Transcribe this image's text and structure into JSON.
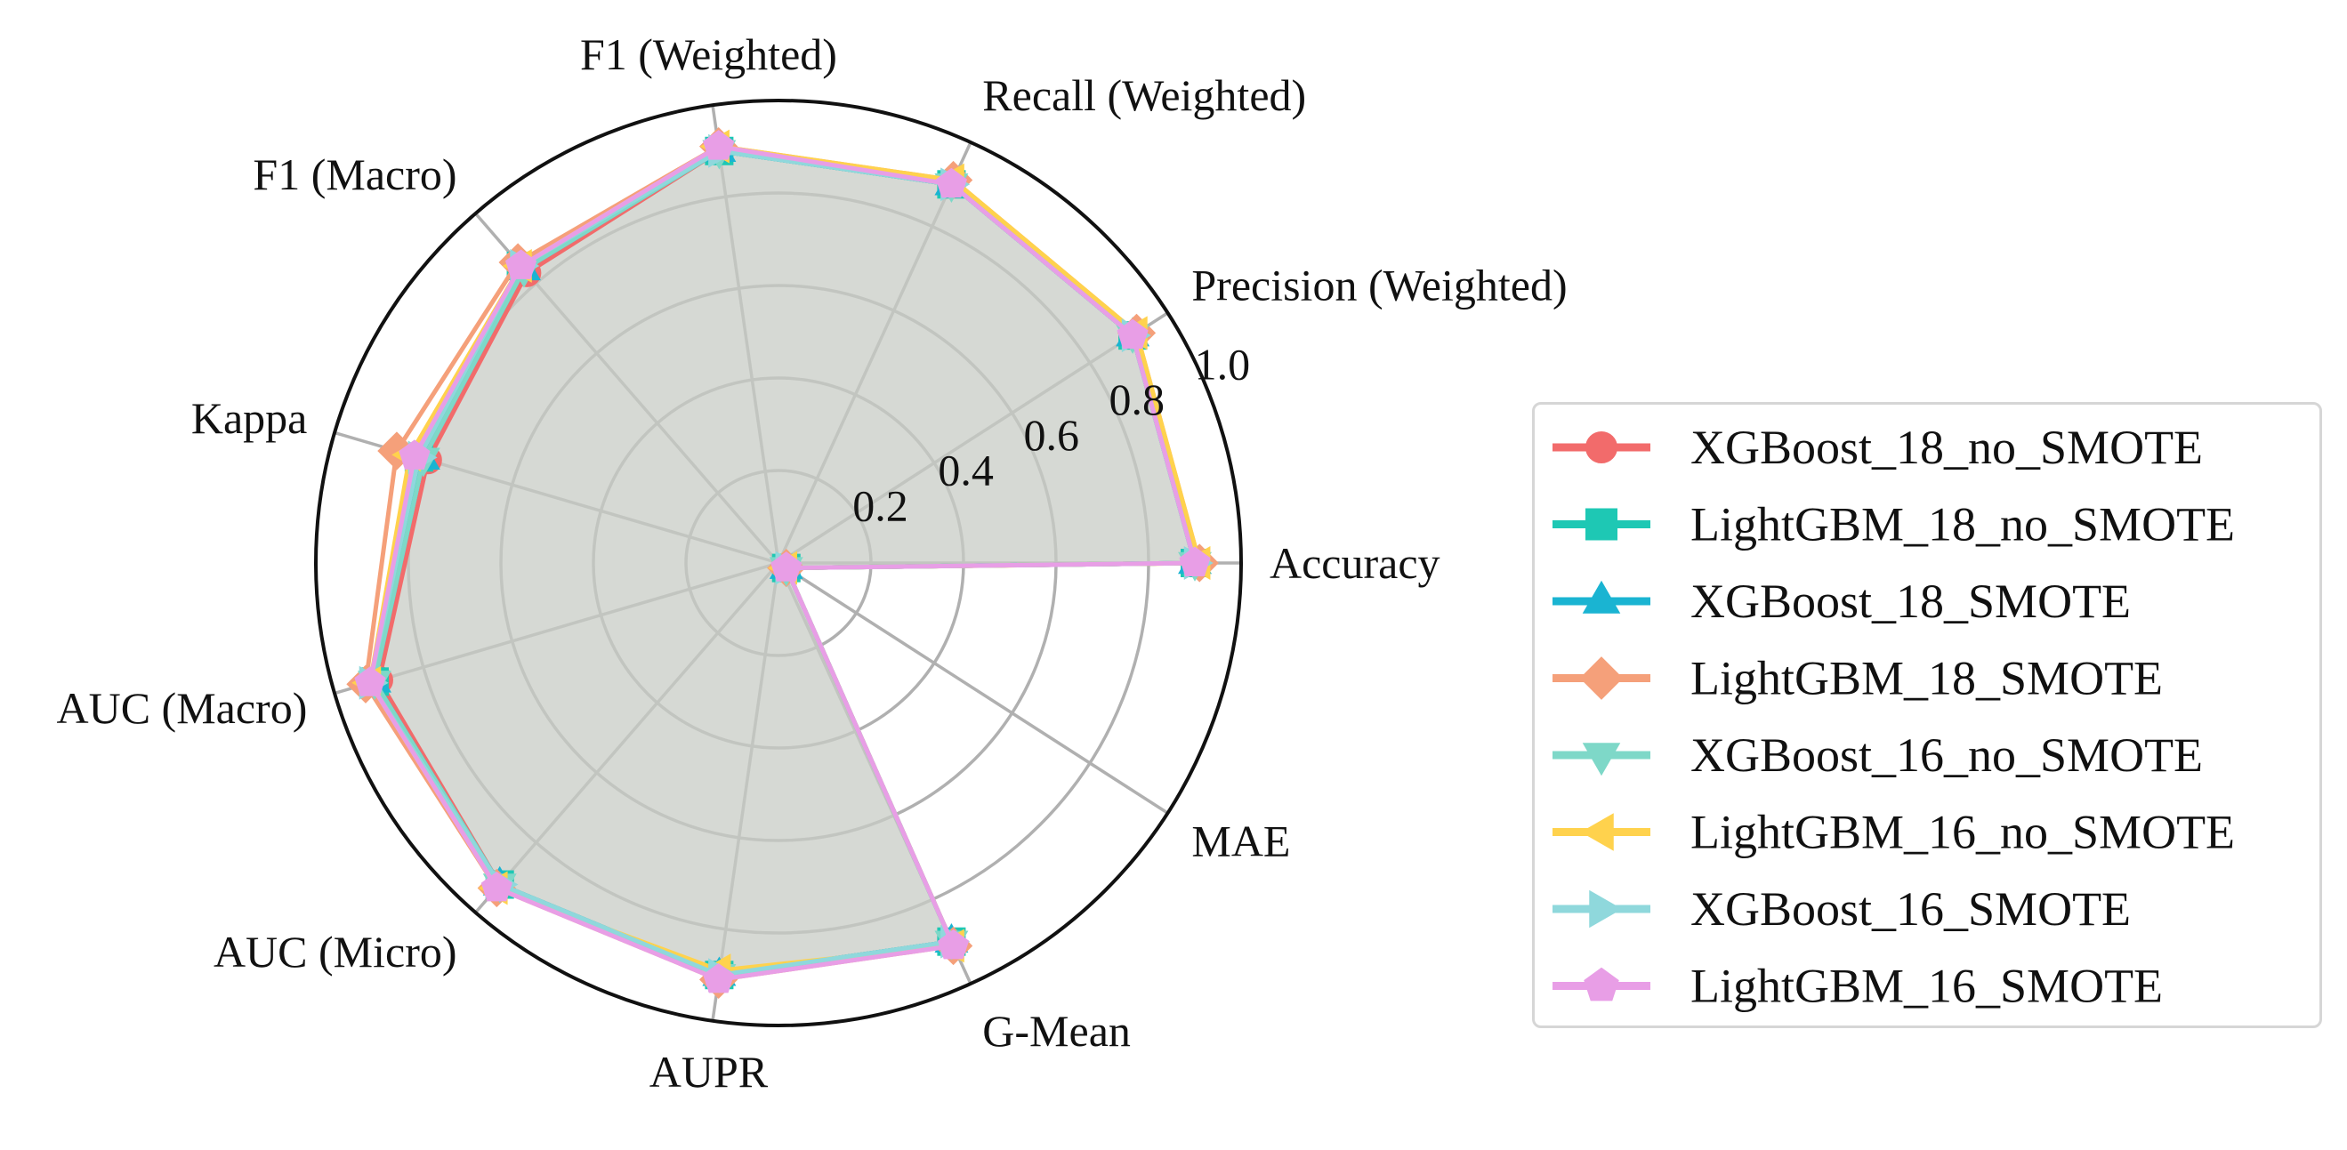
{
  "chart_data": {
    "type": "radar",
    "axes": [
      "Accuracy",
      "Precision (Weighted)",
      "Recall (Weighted)",
      "F1 (Weighted)",
      "F1 (Macro)",
      "Kappa",
      "AUC (Macro)",
      "AUC (Micro)",
      "AUPR",
      "G-Mean",
      "MAE"
    ],
    "rlim": [
      0,
      1.0
    ],
    "r_ticks": [
      0.2,
      0.4,
      0.6,
      0.8,
      1.0
    ],
    "r_tick_labels": [
      "0.2",
      "0.4",
      "0.6",
      "0.8",
      "1.0"
    ],
    "grid": true,
    "legend_position": "right",
    "fill_color": "#c8ccc6",
    "series": [
      {
        "name": "XGBoost_18_no_SMOTE",
        "color": "#f26b6b",
        "marker": "circle",
        "values": [
          0.9,
          0.91,
          0.9,
          0.9,
          0.83,
          0.79,
          0.9,
          0.92,
          0.9,
          0.9,
          0.02
        ]
      },
      {
        "name": "LightGBM_18_no_SMOTE",
        "color": "#1ec8b4",
        "marker": "square",
        "values": [
          0.9,
          0.91,
          0.9,
          0.9,
          0.85,
          0.81,
          0.91,
          0.92,
          0.9,
          0.9,
          0.02
        ]
      },
      {
        "name": "XGBoost_18_SMOTE",
        "color": "#1ab4d2",
        "marker": "triangle-up",
        "values": [
          0.9,
          0.91,
          0.9,
          0.9,
          0.84,
          0.8,
          0.91,
          0.92,
          0.9,
          0.9,
          0.02
        ]
      },
      {
        "name": "LightGBM_18_SMOTE",
        "color": "#f5a07a",
        "marker": "diamond",
        "values": [
          0.91,
          0.92,
          0.91,
          0.91,
          0.86,
          0.86,
          0.93,
          0.93,
          0.91,
          0.91,
          0.02
        ]
      },
      {
        "name": "XGBoost_16_no_SMOTE",
        "color": "#7ed8c8",
        "marker": "triangle-down",
        "values": [
          0.9,
          0.91,
          0.9,
          0.9,
          0.84,
          0.8,
          0.91,
          0.92,
          0.9,
          0.9,
          0.02
        ]
      },
      {
        "name": "LightGBM_16_no_SMOTE",
        "color": "#ffd24d",
        "marker": "triangle-left",
        "values": [
          0.91,
          0.92,
          0.91,
          0.91,
          0.85,
          0.83,
          0.92,
          0.93,
          0.89,
          0.91,
          0.02
        ]
      },
      {
        "name": "XGBoost_16_SMOTE",
        "color": "#8fd8dc",
        "marker": "triangle-right",
        "values": [
          0.9,
          0.91,
          0.9,
          0.9,
          0.85,
          0.81,
          0.92,
          0.92,
          0.9,
          0.9,
          0.02
        ]
      },
      {
        "name": "LightGBM_16_SMOTE",
        "color": "#e89ee6",
        "marker": "pentagon",
        "values": [
          0.9,
          0.91,
          0.9,
          0.91,
          0.85,
          0.82,
          0.92,
          0.93,
          0.91,
          0.91,
          0.02
        ]
      }
    ]
  }
}
